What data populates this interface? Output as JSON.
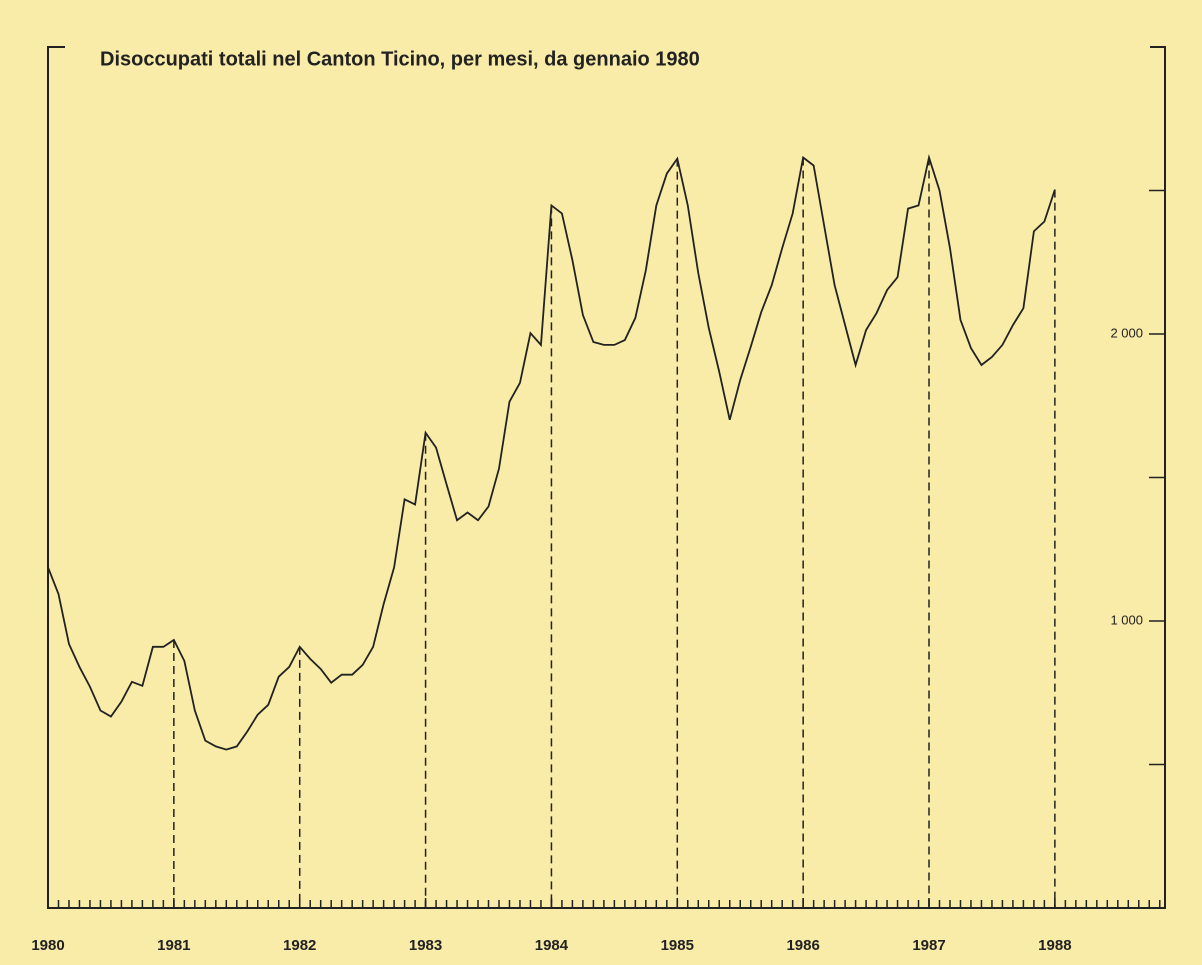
{
  "chart_data": {
    "type": "line",
    "title": "Disoccupati totali nel Canton Ticino, per mesi, da gennaio 1980",
    "x": [
      1980,
      1980.0833,
      1980.1667,
      1980.25,
      1980.3333,
      1980.4167,
      1980.5,
      1980.5833,
      1980.6667,
      1980.75,
      1980.8333,
      1980.9167,
      1981,
      1981.0833,
      1981.1667,
      1981.25,
      1981.3333,
      1981.4167,
      1981.5,
      1981.5833,
      1981.6667,
      1981.75,
      1981.8333,
      1981.9167,
      1982,
      1982.0833,
      1982.1667,
      1982.25,
      1982.3333,
      1982.4167,
      1982.5,
      1982.5833,
      1982.6667,
      1982.75,
      1982.8333,
      1982.9167,
      1983,
      1983.0833,
      1983.1667,
      1983.25,
      1983.3333,
      1983.4167,
      1983.5,
      1983.5833,
      1983.6667,
      1983.75,
      1983.8333,
      1983.9167,
      1984,
      1984.0833,
      1984.1667,
      1984.25,
      1984.3333,
      1984.4167,
      1984.5,
      1984.5833,
      1984.6667,
      1984.75,
      1984.8333,
      1984.9167,
      1985,
      1985.0833,
      1985.1667,
      1985.25,
      1985.3333,
      1985.4167,
      1985.5,
      1985.5833,
      1985.6667,
      1985.75,
      1985.8333,
      1985.9167,
      1986,
      1986.0833,
      1986.1667,
      1986.25,
      1986.3333,
      1986.4167,
      1986.5,
      1986.5833,
      1986.6667,
      1986.75,
      1986.8333,
      1986.9167,
      1987,
      1987.0833,
      1987.1667,
      1987.25,
      1987.3333,
      1987.4167,
      1987.5,
      1987.5833,
      1987.6667,
      1987.75,
      1987.8333,
      1987.9167,
      1988
    ],
    "series": [
      {
        "color": "#222222",
        "values": [
          1187,
          1094,
          920,
          840,
          771,
          688,
          667,
          719,
          788,
          774,
          910,
          910,
          934,
          861,
          688,
          583,
          563,
          552,
          563,
          615,
          674,
          708,
          806,
          840,
          910,
          868,
          833,
          785,
          813,
          813,
          847,
          910,
          1059,
          1187,
          1424,
          1406,
          1656,
          1604,
          1476,
          1351,
          1378,
          1351,
          1399,
          1531,
          1764,
          1830,
          2003,
          1962,
          2448,
          2420,
          2257,
          2066,
          1972,
          1962,
          1962,
          1979,
          2056,
          2222,
          2448,
          2559,
          2611,
          2448,
          2212,
          2021,
          1868,
          1701,
          1840,
          1955,
          2076,
          2170,
          2299,
          2420,
          2615,
          2587,
          2378,
          2170,
          2031,
          1892,
          2014,
          2073,
          2153,
          2198,
          2437,
          2448,
          2615,
          2500,
          2299,
          2049,
          1951,
          1892,
          1920,
          1962,
          2031,
          2090,
          2358,
          2392,
          2503
        ]
      }
    ],
    "xlim": [
      1980,
      1988.875
    ],
    "xticks": [
      1980,
      1981,
      1982,
      1983,
      1984,
      1985,
      1986,
      1987,
      1988
    ],
    "ylim": [
      0,
      3000
    ],
    "yticks": [
      {
        "value": 500,
        "label": null
      },
      {
        "value": 1000,
        "label": "1 000"
      },
      {
        "value": 1500,
        "label": null
      },
      {
        "value": 2000,
        "label": "2 000"
      },
      {
        "value": 2500,
        "label": null
      }
    ]
  }
}
